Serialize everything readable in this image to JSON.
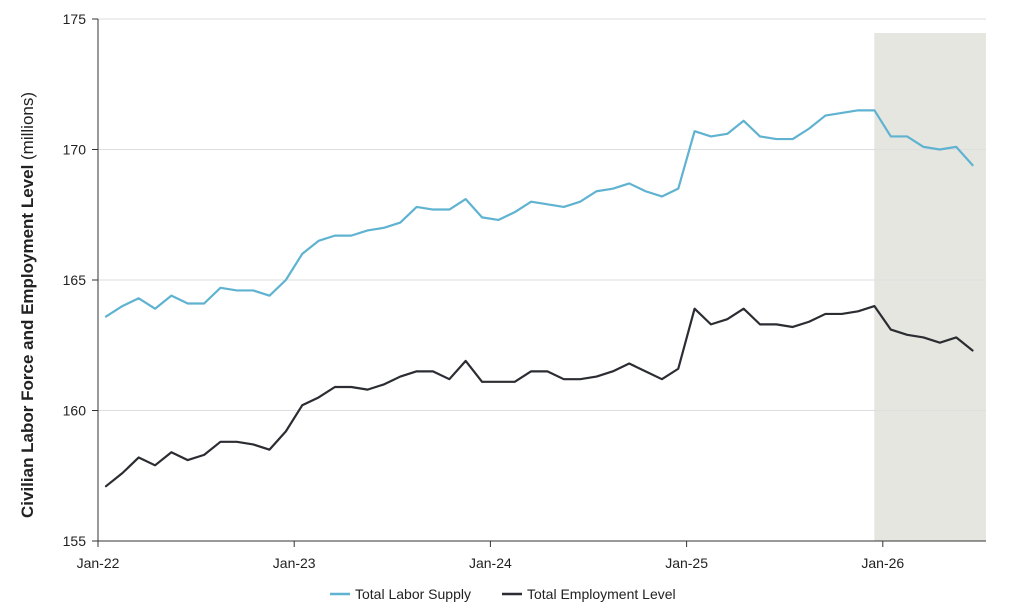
{
  "chart_data": {
    "type": "line",
    "title": "",
    "ylabel_bold": "Civilian Labor Force and Employment Level",
    "ylabel_unit": "(millions)",
    "xlabel": "",
    "ylim": [
      155,
      175
    ],
    "yticks": [
      "155",
      "160",
      "165",
      "170",
      "175"
    ],
    "xticks": [
      "Jan-22",
      "Jan-23",
      "Jan-24",
      "Jan-25",
      "Jan-26"
    ],
    "grid": "horizontal",
    "legend_position": "bottom-center",
    "shaded_region": {
      "start_month_index": 47,
      "end_month_index": 54,
      "color": "#e6e6e1"
    },
    "series": [
      {
        "name": "Total Labor Supply",
        "color": "#5fb3d1",
        "values": [
          163.6,
          164.0,
          164.3,
          163.9,
          164.4,
          164.1,
          164.1,
          164.7,
          164.6,
          164.6,
          164.4,
          165.0,
          166.0,
          166.5,
          166.7,
          166.7,
          166.9,
          167.0,
          167.2,
          167.8,
          167.7,
          167.7,
          168.1,
          167.4,
          167.3,
          167.6,
          168.0,
          167.9,
          167.8,
          168.0,
          168.4,
          168.5,
          168.7,
          168.4,
          168.2,
          168.5,
          170.7,
          170.5,
          170.6,
          171.1,
          170.5,
          170.4,
          170.4,
          170.8,
          171.3,
          171.4,
          171.5,
          171.5,
          170.5,
          170.5,
          170.1,
          170.0,
          170.1,
          169.4
        ]
      },
      {
        "name": "Total Employment Level",
        "color": "#2b2d33",
        "values": [
          157.1,
          157.6,
          158.2,
          157.9,
          158.4,
          158.1,
          158.3,
          158.8,
          158.8,
          158.7,
          158.5,
          159.2,
          160.2,
          160.5,
          160.9,
          160.9,
          160.8,
          161.0,
          161.3,
          161.5,
          161.5,
          161.2,
          161.9,
          161.1,
          161.1,
          161.1,
          161.5,
          161.5,
          161.2,
          161.2,
          161.3,
          161.5,
          161.8,
          161.5,
          161.2,
          161.6,
          163.9,
          163.3,
          163.5,
          163.9,
          163.3,
          163.3,
          163.2,
          163.4,
          163.7,
          163.7,
          163.8,
          164.0,
          163.1,
          162.9,
          162.8,
          162.6,
          162.8,
          162.3
        ]
      }
    ]
  }
}
